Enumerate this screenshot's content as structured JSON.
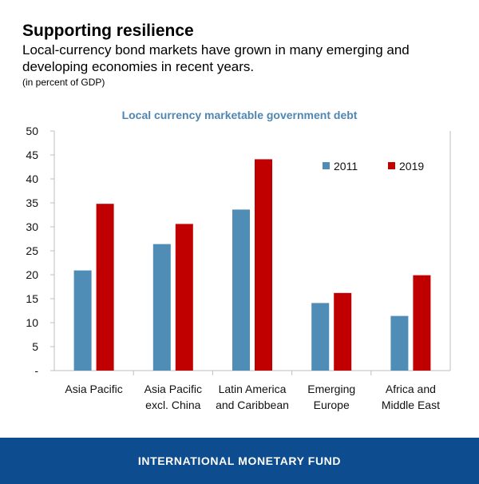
{
  "header": {
    "title": "Supporting resilience",
    "subtitle": "Local-currency bond markets have grown in many emerging and developing economies in recent years.",
    "unit": "(in percent of GDP)"
  },
  "footer": {
    "org": "INTERNATIONAL MONETARY FUND"
  },
  "colors": {
    "series_2011": "#4f8db6",
    "series_2019": "#c00000",
    "chart_title": "#4f86b2",
    "footer_bg": "#0d4c8e"
  },
  "chart_data": {
    "type": "bar",
    "title": "Local currency marketable government debt",
    "categories": [
      [
        "Asia Pacific"
      ],
      [
        "Asia Pacific",
        "excl. China"
      ],
      [
        "Latin America",
        "and Caribbean"
      ],
      [
        "Emerging",
        "Europe"
      ],
      [
        "Africa and",
        "Middle East"
      ]
    ],
    "series": [
      {
        "name": "2011",
        "values": [
          20.9,
          26.4,
          33.6,
          14.1,
          11.4
        ]
      },
      {
        "name": "2019",
        "values": [
          34.8,
          30.6,
          44.1,
          16.2,
          19.9
        ]
      }
    ],
    "ylim": [
      0,
      50
    ],
    "yticks": [
      "-",
      "5",
      "10",
      "15",
      "20",
      "25",
      "30",
      "35",
      "40",
      "45",
      "50"
    ],
    "legend": "top-right",
    "grid": false
  }
}
